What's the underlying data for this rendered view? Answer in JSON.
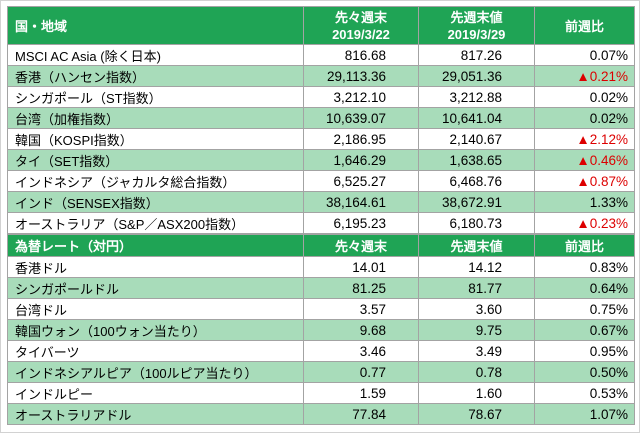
{
  "palette": {
    "header_bg": "#1fa455",
    "alt_row_bg": "#a8dcba",
    "negative": "#dd0000",
    "grid_line": "#a3a3a3",
    "frame_border": "#d2d2d2"
  },
  "indices": {
    "header": {
      "region": "国・地域",
      "prev_label": "先々週末",
      "prev_date": "2019/3/22",
      "last_label": "先週末値",
      "last_date": "2019/3/29",
      "change_label": "前週比"
    },
    "rows": [
      {
        "name": "MSCI AC Asia (除く日本)",
        "prev": "816.68",
        "last": "817.26",
        "change": "0.07%"
      },
      {
        "name": "香港（ハンセン指数）",
        "prev": "29,113.36",
        "last": "29,051.36",
        "change": "▲0.21%"
      },
      {
        "name": "シンガポール（ST指数）",
        "prev": "3,212.10",
        "last": "3,212.88",
        "change": "0.02%"
      },
      {
        "name": "台湾（加権指数）",
        "prev": "10,639.07",
        "last": "10,641.04",
        "change": "0.02%"
      },
      {
        "name": "韓国（KOSPI指数）",
        "prev": "2,186.95",
        "last": "2,140.67",
        "change": "▲2.12%"
      },
      {
        "name": "タイ（SET指数）",
        "prev": "1,646.29",
        "last": "1,638.65",
        "change": "▲0.46%"
      },
      {
        "name": "インドネシア（ジャカルタ総合指数）",
        "prev": "6,525.27",
        "last": "6,468.76",
        "change": "▲0.87%"
      },
      {
        "name": "インド（SENSEX指数）",
        "prev": "38,164.61",
        "last": "38,672.91",
        "change": "1.33%"
      },
      {
        "name": "オーストラリア（S&P／ASX200指数）",
        "prev": "6,195.23",
        "last": "6,180.73",
        "change": "▲0.23%"
      }
    ]
  },
  "fx": {
    "header": {
      "label": "為替レート（対円）",
      "prev_label": "先々週末",
      "last_label": "先週末値",
      "change_label": "前週比"
    },
    "rows": [
      {
        "name": "香港ドル",
        "prev": "14.01",
        "last": "14.12",
        "change": "0.83%"
      },
      {
        "name": "シンガポールドル",
        "prev": "81.25",
        "last": "81.77",
        "change": "0.64%"
      },
      {
        "name": "台湾ドル",
        "prev": "3.57",
        "last": "3.60",
        "change": "0.75%"
      },
      {
        "name": "韓国ウォン（100ウォン当たり）",
        "prev": "9.68",
        "last": "9.75",
        "change": "0.67%"
      },
      {
        "name": "タイバーツ",
        "prev": "3.46",
        "last": "3.49",
        "change": "0.95%"
      },
      {
        "name": "インドネシアルピア（100ルピア当たり）",
        "prev": "0.77",
        "last": "0.78",
        "change": "0.50%"
      },
      {
        "name": "インドルピー",
        "prev": "1.59",
        "last": "1.60",
        "change": "0.53%"
      },
      {
        "name": "オーストラリアドル",
        "prev": "77.84",
        "last": "78.67",
        "change": "1.07%"
      }
    ]
  },
  "chart_data": [
    {
      "type": "table",
      "columns": [
        "国・地域",
        "先々週末 2019/3/22",
        "先週末値 2019/3/29",
        "前週比"
      ],
      "rows": [
        [
          "MSCI AC Asia (除く日本)",
          816.68,
          817.26,
          "0.07%"
        ],
        [
          "香港（ハンセン指数）",
          29113.36,
          29051.36,
          "▲0.21%"
        ],
        [
          "シンガポール（ST指数）",
          3212.1,
          3212.88,
          "0.02%"
        ],
        [
          "台湾（加権指数）",
          10639.07,
          10641.04,
          "0.02%"
        ],
        [
          "韓国（KOSPI指数）",
          2186.95,
          2140.67,
          "▲2.12%"
        ],
        [
          "タイ（SET指数）",
          1646.29,
          1638.65,
          "▲0.46%"
        ],
        [
          "インドネシア（ジャカルタ総合指数）",
          6525.27,
          6468.76,
          "▲0.87%"
        ],
        [
          "インド（SENSEX指数）",
          38164.61,
          38672.91,
          "1.33%"
        ],
        [
          "オーストラリア（S&P／ASX200指数）",
          6195.23,
          6180.73,
          "▲0.23%"
        ]
      ]
    },
    {
      "type": "table",
      "columns": [
        "為替レート（対円）",
        "先々週末",
        "先週末値",
        "前週比"
      ],
      "rows": [
        [
          "香港ドル",
          14.01,
          14.12,
          "0.83%"
        ],
        [
          "シンガポールドル",
          81.25,
          81.77,
          "0.64%"
        ],
        [
          "台湾ドル",
          3.57,
          3.6,
          "0.75%"
        ],
        [
          "韓国ウォン（100ウォン当たり）",
          9.68,
          9.75,
          "0.67%"
        ],
        [
          "タイバーツ",
          3.46,
          3.49,
          "0.95%"
        ],
        [
          "インドネシアルピア（100ルピア当たり）",
          0.77,
          0.78,
          "0.50%"
        ],
        [
          "インドルピー",
          1.59,
          1.6,
          "0.53%"
        ],
        [
          "オーストラリアドル",
          77.84,
          78.67,
          "1.07%"
        ]
      ]
    }
  ]
}
